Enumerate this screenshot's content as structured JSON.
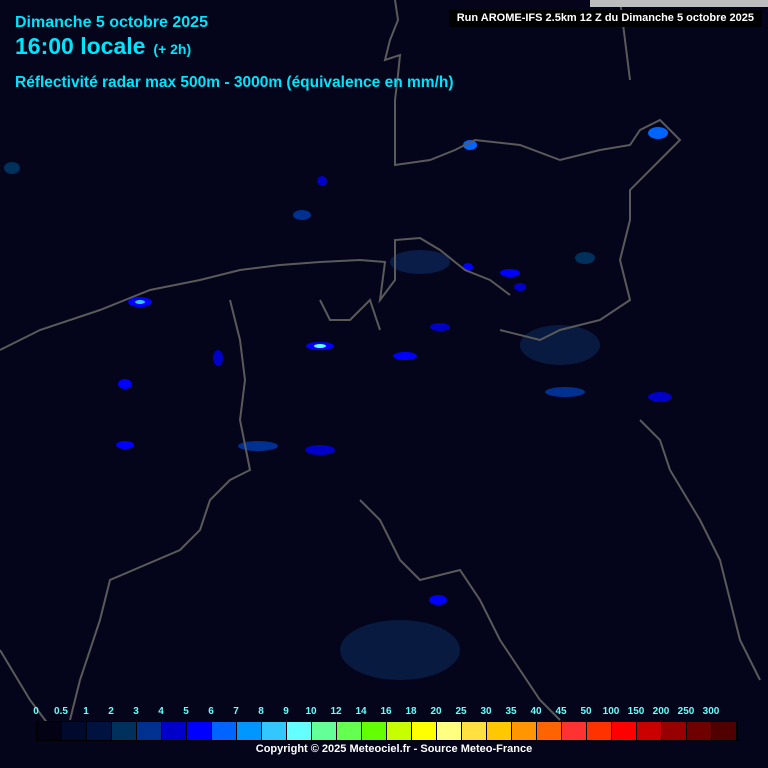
{
  "header": {
    "date": "Dimanche 5 octobre 2025",
    "time": "16:00 locale",
    "offset": "(+ 2h)",
    "product": "Réflectivité radar max 500m - 3000m (équivalence en mm/h)",
    "run": "Run AROME-IFS 2.5km 12 Z du Dimanche 5 octobre 2025"
  },
  "legend": {
    "labels": [
      "0",
      "0.5",
      "1",
      "2",
      "3",
      "4",
      "5",
      "6",
      "7",
      "8",
      "9",
      "10",
      "12",
      "14",
      "16",
      "18",
      "20",
      "25",
      "30",
      "35",
      "40",
      "45",
      "50",
      "100",
      "150",
      "200",
      "250",
      "300"
    ],
    "colors": [
      "#020214",
      "#000a2c",
      "#001240",
      "#00305c",
      "#003090",
      "#0000c8",
      "#0000ff",
      "#0064ff",
      "#0096ff",
      "#32c8ff",
      "#64ffff",
      "#64ff96",
      "#64ff50",
      "#64ff00",
      "#c8ff00",
      "#ffff00",
      "#ffff80",
      "#ffe040",
      "#ffc800",
      "#ff9600",
      "#ff6400",
      "#ff3232",
      "#ff3200",
      "#ff0000",
      "#c80000",
      "#960000",
      "#6e0000",
      "#500000"
    ]
  },
  "footer": {
    "copyright": "Copyright © 2025 Meteociel.fr - Source Meteo-France"
  },
  "colors": {
    "background": "#04051a",
    "header_text": "#00e5ff",
    "border_lines": "#5a5a5a"
  }
}
